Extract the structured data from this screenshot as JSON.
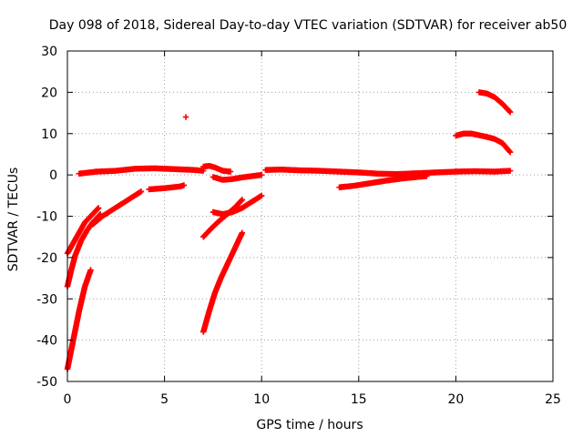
{
  "chart_data": {
    "type": "scatter",
    "title": "Day 098 of 2018, Sidereal Day-to-day VTEC variation (SDTVAR) for receiver ab50",
    "xlabel": "GPS time / hours",
    "ylabel": "SDTVAR / TECUs",
    "xlim": [
      0,
      25
    ],
    "ylim": [
      -50,
      30
    ],
    "xticks": [
      "0",
      "5",
      "10",
      "15",
      "20",
      "25"
    ],
    "yticks": [
      "-50",
      "-40",
      "-30",
      "-20",
      "-10",
      "0",
      "10",
      "20",
      "30"
    ],
    "grid": true,
    "legend": "none",
    "marker": "plus",
    "color": "#ff0000",
    "segments": [
      {
        "x": [
          0.0,
          0.3,
          0.6,
          0.9,
          1.2,
          1.6
        ],
        "y": [
          -19,
          -16.5,
          -14,
          -11.5,
          -10,
          -8
        ]
      },
      {
        "x": [
          0.0,
          0.2,
          0.4,
          0.7,
          1.0,
          1.3,
          1.7
        ],
        "y": [
          -27,
          -23,
          -19.5,
          -16,
          -13.5,
          -11.5,
          -9.5
        ]
      },
      {
        "x": [
          0.0,
          0.3,
          0.6,
          0.9,
          1.2
        ],
        "y": [
          -47,
          -40,
          -33,
          -27,
          -23
        ]
      },
      {
        "x": [
          1.3,
          1.8,
          2.3,
          2.8,
          3.3,
          3.8
        ],
        "y": [
          -12,
          -10,
          -8.5,
          -7,
          -5.5,
          -4
        ]
      },
      {
        "x": [
          4.2,
          5.0,
          5.8,
          6.0
        ],
        "y": [
          -3.5,
          -3.2,
          -2.8,
          -2.5
        ]
      },
      {
        "x": [
          0.6,
          1.5,
          2.5,
          3.5,
          4.5,
          5.5,
          6.5,
          7.0
        ],
        "y": [
          0.3,
          0.8,
          1.0,
          1.5,
          1.6,
          1.4,
          1.2,
          1.0
        ]
      },
      {
        "x": [
          7.0,
          7.3,
          7.6,
          8.0,
          8.4
        ],
        "y": [
          2.0,
          2.2,
          1.8,
          1.0,
          0.8
        ]
      },
      {
        "x": [
          7.5,
          8.0,
          8.5,
          9.0,
          9.5,
          10.0
        ],
        "y": [
          -0.5,
          -1.2,
          -1.0,
          -0.6,
          -0.3,
          0.0
        ]
      },
      {
        "x": [
          10.2,
          11.0,
          12.0,
          13.0,
          14.0,
          15.0,
          16.0,
          17.0,
          18.0,
          19.0,
          20.0,
          21.0,
          22.0,
          22.8
        ],
        "y": [
          1.2,
          1.3,
          1.1,
          1.0,
          0.8,
          0.6,
          0.3,
          0.2,
          0.4,
          0.6,
          0.8,
          0.9,
          0.8,
          1.0
        ]
      },
      {
        "x": [
          14.0,
          14.8,
          15.6,
          16.4,
          17.2,
          18.0,
          18.5
        ],
        "y": [
          -3,
          -2.6,
          -2.0,
          -1.4,
          -0.9,
          -0.5,
          -0.3
        ]
      },
      {
        "x": [
          7.0,
          7.4,
          7.8,
          8.2,
          8.6,
          9.0
        ],
        "y": [
          -15,
          -13,
          -11.2,
          -9.6,
          -8.0,
          -6.0
        ]
      },
      {
        "x": [
          7.5,
          8.0,
          8.5,
          9.0,
          9.5,
          10.0
        ],
        "y": [
          -9,
          -9.5,
          -9.0,
          -8.0,
          -6.5,
          -5.0
        ]
      },
      {
        "x": [
          7.0,
          7.3,
          7.6,
          7.9,
          8.2,
          8.5,
          8.8,
          9.0
        ],
        "y": [
          -38,
          -33,
          -28.5,
          -25,
          -22,
          -19,
          -16,
          -14
        ]
      },
      {
        "x": [
          20.0,
          20.4,
          20.8,
          21.2,
          21.6,
          22.0,
          22.4,
          22.8
        ],
        "y": [
          9.5,
          10,
          10,
          9.6,
          9.2,
          8.7,
          7.7,
          5.5
        ]
      },
      {
        "x": [
          21.2,
          21.6,
          22.0,
          22.4,
          22.8
        ],
        "y": [
          20,
          19.7,
          18.8,
          17.2,
          15.2
        ]
      },
      {
        "x": [
          6.1
        ],
        "y": [
          14
        ]
      }
    ]
  }
}
